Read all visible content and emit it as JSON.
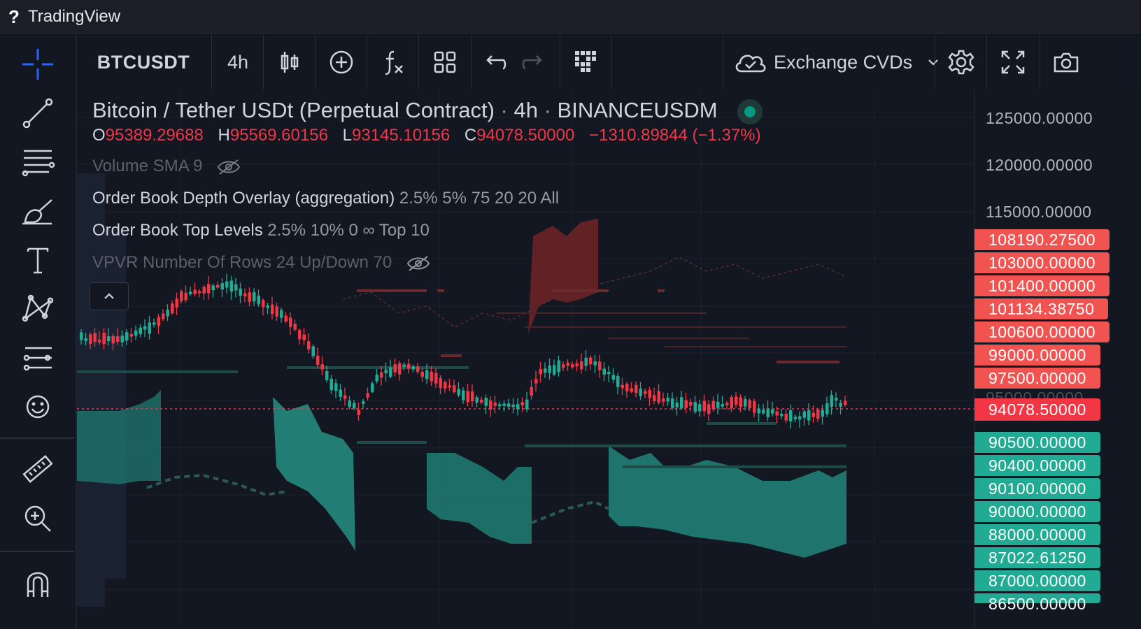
{
  "window": {
    "help_glyph": "?",
    "title": "TradingView"
  },
  "left_toolbar": {
    "tools": [
      "crosshair-icon",
      "trend-line-icon",
      "fib-retracement-icon",
      "brush-icon",
      "text-icon",
      "pattern-icon",
      "prediction-icon",
      "emoji-icon",
      "ruler-icon",
      "zoom-in-icon",
      "magnet-icon"
    ]
  },
  "top_toolbar": {
    "symbol": "BTCUSDT",
    "interval": "4h",
    "indicators_label": "Exchange CVDs"
  },
  "chart": {
    "title": "Bitcoin / Tether USDt (Perpetual Contract)",
    "sep": "·",
    "interval": "4h",
    "exchange": "BINANCEUSDM",
    "ohlc": {
      "o_key": "O",
      "o": "95389.29688",
      "h_key": "H",
      "h": "95569.60156",
      "l_key": "L",
      "l": "93145.10156",
      "c_key": "C",
      "c": "94078.50000",
      "change": "−1310.89844 (−1.37%)"
    },
    "studies": [
      {
        "name": "Volume SMA 9",
        "args": "",
        "hidden": true
      },
      {
        "name": "Order Book Depth Overlay (aggregation)",
        "args": "2.5% 5% 75 20 20 All",
        "hidden": false
      },
      {
        "name": "Order Book Top Levels",
        "args": "2.5% 10% 0 ∞ Top 10",
        "hidden": false
      },
      {
        "name": "VPVR Number Of Rows 24 Up/Down 70",
        "args": "",
        "hidden": true
      }
    ]
  },
  "price_scale": {
    "ticks": [
      "125000.00000",
      "120000.00000",
      "115000.00000"
    ],
    "ask_levels": [
      "108190.27500",
      "103000.00000",
      "101400.00000",
      "101134.38750",
      "100600.00000",
      "99000.00000",
      "97500.00000"
    ],
    "partial_tick": "95000.00000",
    "last_price": "94078.50000",
    "bid_levels": [
      "90500.00000",
      "90400.00000",
      "90100.00000",
      "90000.00000",
      "88000.00000",
      "87022.61250",
      "87000.00000",
      "86500.00000"
    ]
  },
  "colors": {
    "up": "#22ab94",
    "down": "#f23645",
    "background": "#131722",
    "ask_label": "#f05350",
    "bid_label": "#22ab94"
  }
}
